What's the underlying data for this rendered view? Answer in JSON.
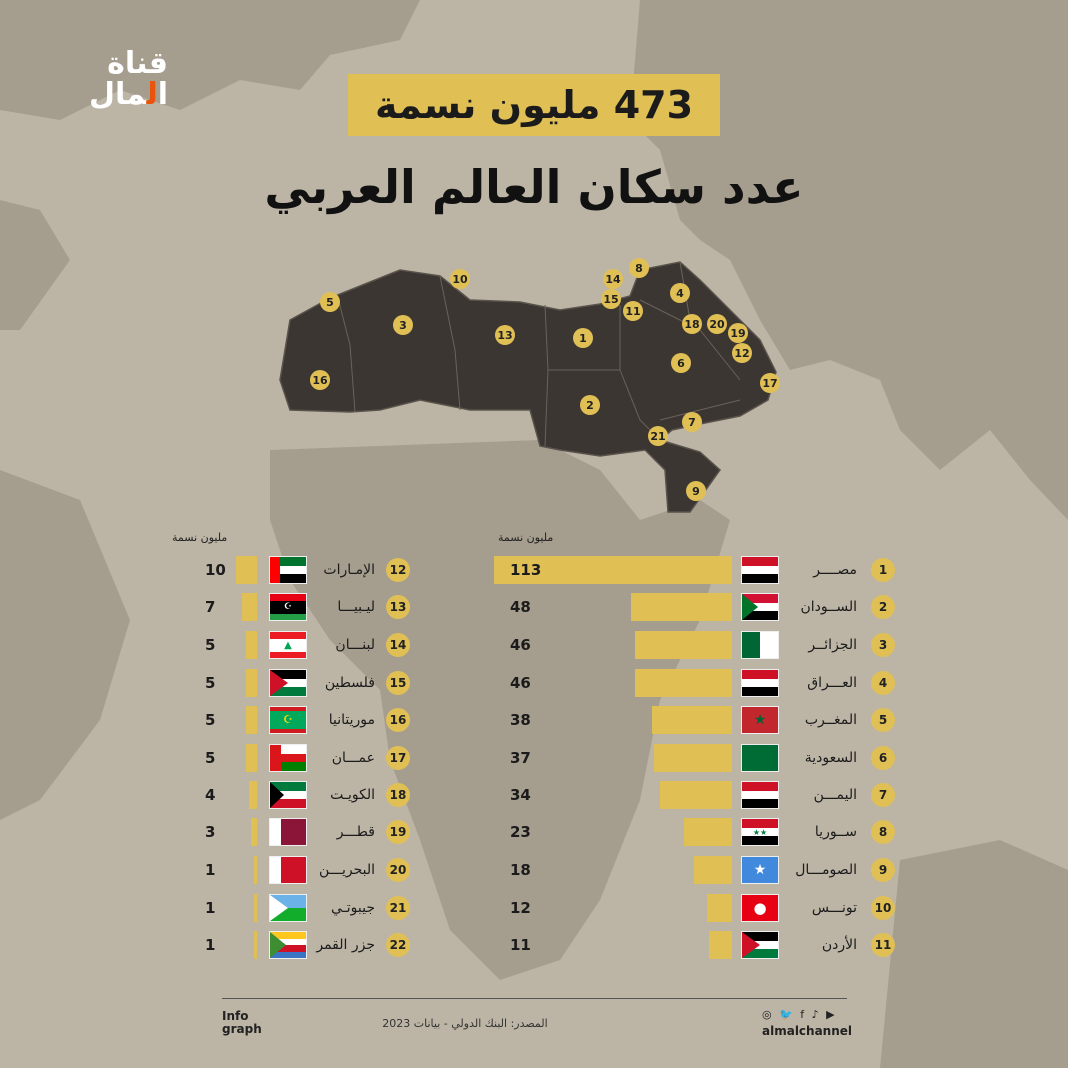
{
  "logo": {
    "line1": "قناة",
    "line2_a": "ا",
    "line2_o": "ل",
    "line2_b": "مال"
  },
  "headline": "473 مليون نسمة",
  "subtitle": "عدد سكان العالم العربي",
  "units": {
    "left": "مليون نسمة",
    "right": "مليون نسمة"
  },
  "map_labels": [
    "1",
    "2",
    "3",
    "4",
    "5",
    "6",
    "7",
    "8",
    "9",
    "10",
    "11",
    "12",
    "13",
    "14",
    "15",
    "16",
    "17",
    "18",
    "19",
    "20",
    "21"
  ],
  "chart_data": {
    "type": "bar",
    "title": "عدد سكان العالم العربي",
    "unit": "مليون نسمة",
    "categories": [
      "مصــــر",
      "الســودان",
      "الجزائــر",
      "العـــراق",
      "المغــرب",
      "السعودية",
      "اليمـــن",
      "ســوريا",
      "الصومـــال",
      "تونـــس",
      "الأردن",
      "الإمـارات",
      "ليـبيـــا",
      "لبنـــان",
      "فلسطين",
      "موريتانيا",
      "عمـــان",
      "الكويـت",
      "قطـــر",
      "البحريـــن",
      "جيبوتـي",
      "جزر القمر"
    ],
    "ranks": [
      "1",
      "2",
      "3",
      "4",
      "5",
      "6",
      "7",
      "8",
      "9",
      "10",
      "11",
      "12",
      "13",
      "14",
      "15",
      "16",
      "17",
      "18",
      "19",
      "20",
      "21",
      "22"
    ],
    "values": [
      113,
      48,
      46,
      46,
      38,
      37,
      34,
      23,
      18,
      12,
      11,
      10,
      7,
      5,
      5,
      5,
      5,
      4,
      3,
      1,
      1,
      1
    ],
    "flags": [
      "egypt",
      "sudan",
      "algeria",
      "iraq",
      "morocco",
      "saudi",
      "yemen",
      "syria",
      "somalia",
      "tunisia",
      "jordan",
      "uae",
      "libya",
      "lebanon",
      "palestine",
      "mauritania",
      "oman",
      "kuwait",
      "qatar",
      "bahrain",
      "djibouti",
      "comoros"
    ]
  },
  "footer": {
    "brand_line1": "Info",
    "brand_line2": "graph",
    "source": "المصدر: البنك الدولي  - بيانات 2023",
    "social_icons": "◎ 🐦 f ♪ ▶",
    "handle": "almalchannel"
  },
  "colors": {
    "accent": "#e0c055",
    "land": "#3b3632",
    "ocean": "#bcb5a6",
    "logo_orange": "#e9540d"
  }
}
